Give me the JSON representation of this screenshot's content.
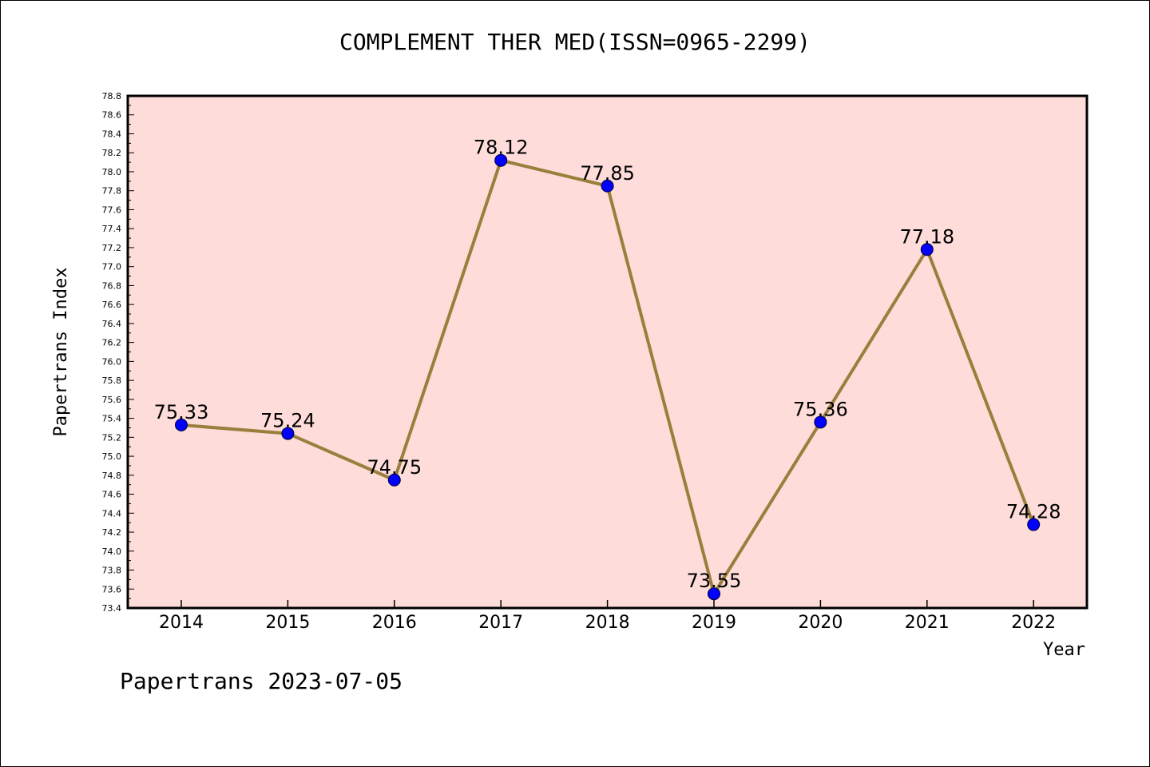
{
  "chart_data": {
    "type": "line",
    "title": "COMPLEMENT THER MED(ISSN=0965-2299)",
    "xlabel": "Year",
    "ylabel": "Papertrans Index",
    "categories": [
      "2014",
      "2015",
      "2016",
      "2017",
      "2018",
      "2019",
      "2020",
      "2021",
      "2022"
    ],
    "values": [
      75.33,
      75.24,
      74.75,
      78.12,
      77.85,
      73.55,
      75.36,
      77.18,
      74.28
    ],
    "data_labels": [
      "75.33",
      "75.24",
      "74.75",
      "78.12",
      "77.85",
      "73.55",
      "75.36",
      "77.18",
      "74.28"
    ],
    "ylim": [
      73.4,
      78.8
    ],
    "yticks": [
      "73.4",
      "73.6",
      "73.8",
      "74.0",
      "74.2",
      "74.4",
      "74.6",
      "74.8",
      "75.0",
      "75.2",
      "75.4",
      "75.6",
      "75.8",
      "76.0",
      "76.2",
      "76.4",
      "76.6",
      "76.8",
      "77.0",
      "77.2",
      "77.4",
      "77.6",
      "77.8",
      "78.0",
      "78.2",
      "78.4",
      "78.6",
      "78.8"
    ],
    "grid": false,
    "colors": {
      "plot_background": "#fddcd9",
      "line": "#9a7f3c",
      "marker": "#0000ff"
    }
  },
  "footer": "Papertrans 2023-07-05"
}
